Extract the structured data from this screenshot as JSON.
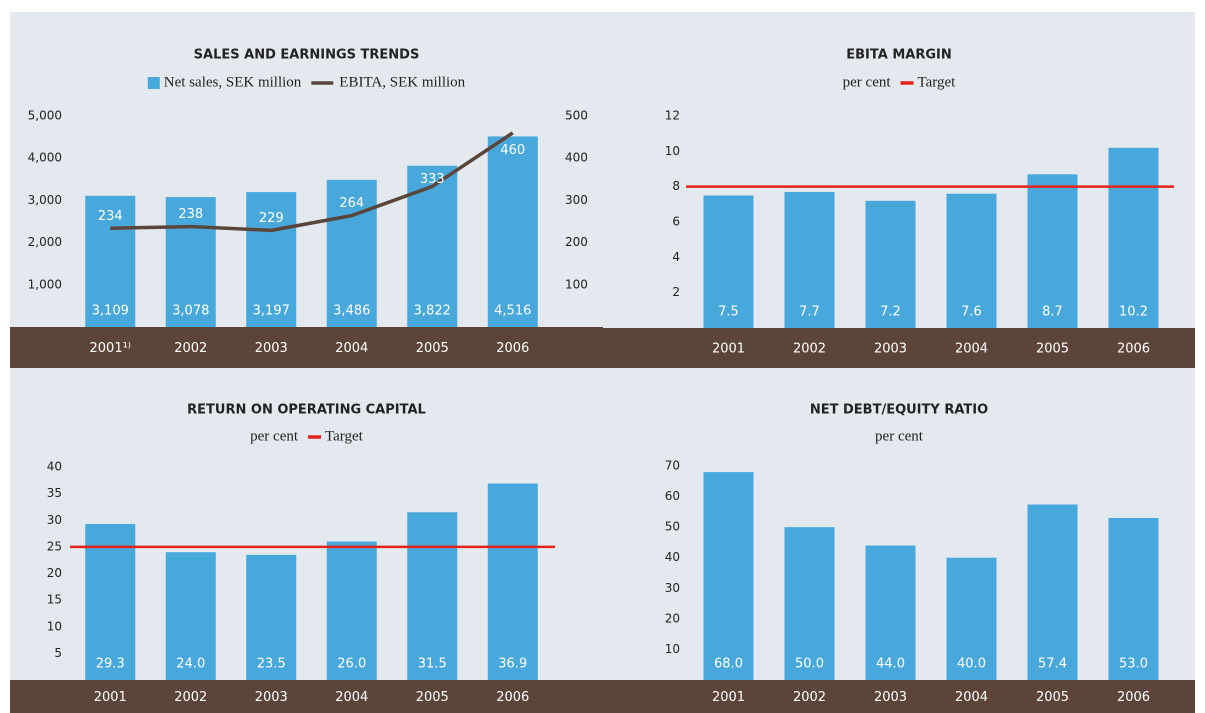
{
  "chart_data": [
    {
      "type": "bar",
      "title": "SALES AND EARNINGS TRENDS",
      "categories": [
        "2001¹⁾",
        "2002",
        "2003",
        "2004",
        "2005",
        "2006"
      ],
      "series": [
        {
          "name": "Net sales, SEK million",
          "type": "bar",
          "color": "#48a8dc",
          "values": [
            3109,
            3078,
            3197,
            3486,
            3822,
            4516
          ],
          "value_labels": [
            "3,109",
            "3,078",
            "3,197",
            "3,486",
            "3,822",
            "4,516"
          ]
        },
        {
          "name": "EBITA, SEK million",
          "type": "line",
          "axis": "y2",
          "color": "#5a453a",
          "values": [
            234,
            238,
            229,
            264,
            333,
            460
          ]
        }
      ],
      "ylim": [
        0,
        5000
      ],
      "yticks": [
        {
          "value": 1000,
          "label": "1,000"
        },
        {
          "value": 2000,
          "label": "2,000"
        },
        {
          "value": 3000,
          "label": "3,000"
        },
        {
          "value": 4000,
          "label": "4,000"
        },
        {
          "value": 5000,
          "label": "5,000"
        }
      ],
      "y2lim": [
        0,
        500
      ],
      "y2ticks": [
        100,
        200,
        300,
        400,
        500
      ]
    },
    {
      "type": "bar",
      "title": "EBITA MARGIN",
      "subtitle": "per cent",
      "categories": [
        "2001",
        "2002",
        "2003",
        "2004",
        "2005",
        "2006"
      ],
      "series": [
        {
          "type": "bar",
          "color": "#48a8dc",
          "values": [
            7.5,
            7.7,
            7.2,
            7.6,
            8.7,
            10.2
          ]
        }
      ],
      "target": {
        "name": "Target",
        "value": 8,
        "color": "#e2231a"
      },
      "ylim": [
        0,
        12
      ],
      "yticks": [
        2,
        4,
        6,
        8,
        10,
        12
      ]
    },
    {
      "type": "bar",
      "title": "RETURN ON OPERATING CAPITAL",
      "subtitle": "per cent",
      "categories": [
        "2001",
        "2002",
        "2003",
        "2004",
        "2005",
        "2006"
      ],
      "series": [
        {
          "type": "bar",
          "color": "#48a8dc",
          "values": [
            29.3,
            24.0,
            23.5,
            26.0,
            31.5,
            36.9
          ],
          "value_labels": [
            "29.3",
            "24.0",
            "23.5",
            "26.0",
            "31.5",
            "36.9"
          ]
        }
      ],
      "target": {
        "name": "Target",
        "value": 25,
        "color": "#e2231a"
      },
      "ylim": [
        0,
        40
      ],
      "yticks": [
        5,
        10,
        15,
        20,
        25,
        30,
        35,
        40
      ]
    },
    {
      "type": "bar",
      "title": "NET DEBT/EQUITY RATIO",
      "subtitle": "per cent",
      "categories": [
        "2001",
        "2002",
        "2003",
        "2004",
        "2005",
        "2006"
      ],
      "series": [
        {
          "type": "bar",
          "color": "#48a8dc",
          "values": [
            68.0,
            50.0,
            44.0,
            40.0,
            57.4,
            53.0
          ],
          "value_labels": [
            "68.0",
            "50.0",
            "44.0",
            "40.0",
            "57.4",
            "53.0"
          ]
        }
      ],
      "ylim": [
        0,
        70
      ],
      "yticks": [
        10,
        20,
        30,
        40,
        50,
        60,
        70
      ]
    }
  ]
}
